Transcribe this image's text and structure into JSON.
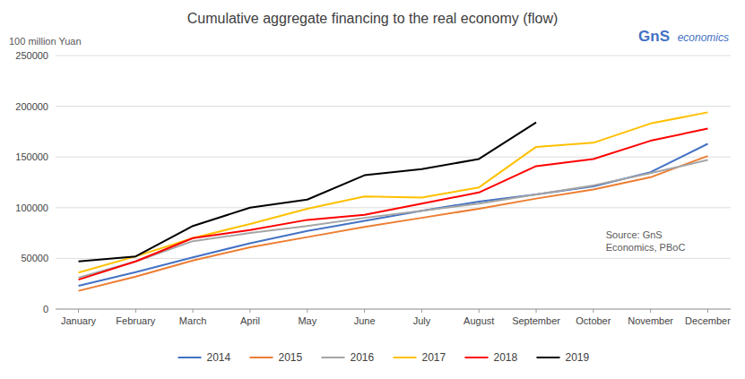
{
  "chart_data": {
    "type": "line",
    "title": "Cumulative aggregate financing to the real economy (flow)",
    "ylabel": "100 million Yuan",
    "annotations": [
      "Source: GnS\nEconomics, PBoC",
      "GnS",
      "economics"
    ],
    "categories": [
      "January",
      "February",
      "March",
      "April",
      "May",
      "June",
      "July",
      "August",
      "September",
      "October",
      "November",
      "December"
    ],
    "series": [
      {
        "name": "2014",
        "color": "#4472C4",
        "values": [
          23000,
          36500,
          51000,
          65000,
          77000,
          87000,
          97000,
          106000,
          113000,
          121000,
          135000,
          163000
        ]
      },
      {
        "name": "2015",
        "color": "#ED7D31",
        "values": [
          18000,
          32000,
          48000,
          61000,
          71000,
          81000,
          90000,
          99000,
          109000,
          118000,
          130000,
          151000
        ]
      },
      {
        "name": "2016",
        "color": "#A5A5A5",
        "values": [
          31000,
          47000,
          67000,
          75000,
          82000,
          90000,
          97000,
          104000,
          113000,
          122000,
          134000,
          147000
        ]
      },
      {
        "name": "2017",
        "color": "#FFC000",
        "values": [
          36000,
          52000,
          70000,
          84000,
          99000,
          111000,
          110000,
          120000,
          160000,
          164000,
          183000,
          194000
        ]
      },
      {
        "name": "2018",
        "color": "#FF0000",
        "values": [
          29000,
          47000,
          70000,
          78000,
          88000,
          93000,
          104000,
          115000,
          141000,
          148000,
          166000,
          178000
        ]
      },
      {
        "name": "2019",
        "color": "#000000",
        "values": [
          47000,
          52000,
          82000,
          100000,
          108000,
          132000,
          138000,
          148000,
          184000,
          null,
          null,
          null
        ]
      }
    ],
    "ylim": [
      0,
      250000
    ],
    "yticks": [
      0,
      50000,
      100000,
      150000,
      200000,
      250000
    ],
    "grid": true,
    "legend": "bottom"
  }
}
